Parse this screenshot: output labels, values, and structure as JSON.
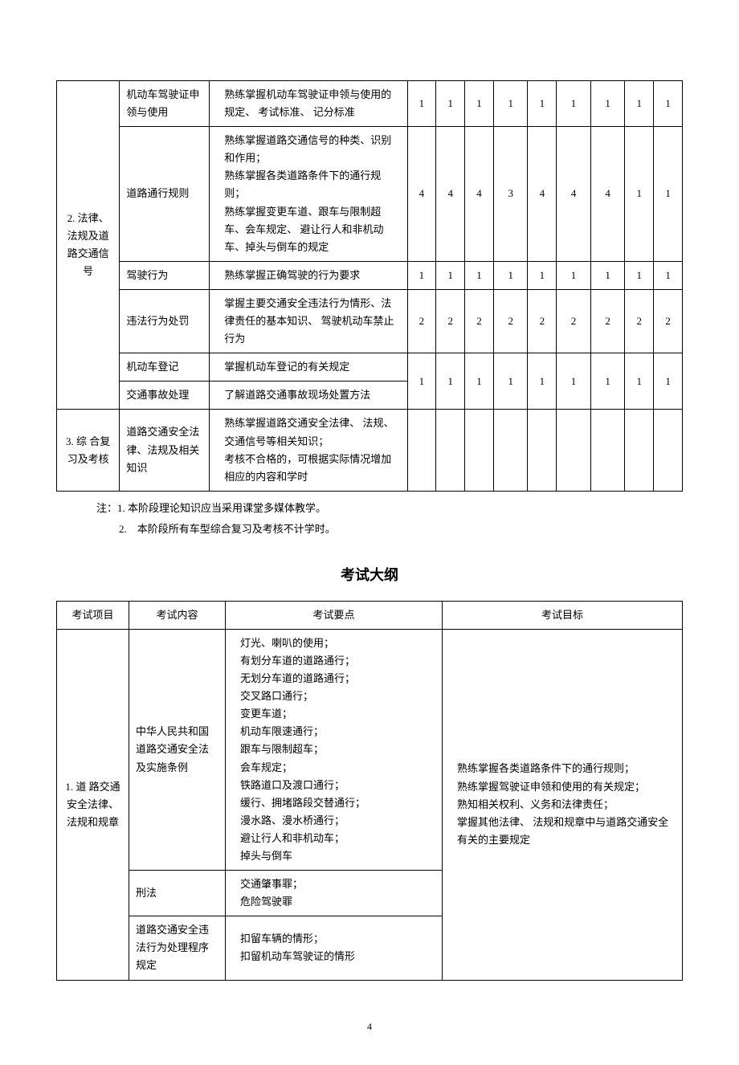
{
  "table1": {
    "sectionHeader": "2. 法律、法规及道路交通信号",
    "rows": [
      {
        "topic": "机动车驾驶证申领与使用",
        "desc": "熟练掌握机动车驾驶证申领与使用的规定、 考试标准、 记分标准",
        "vals": [
          "1",
          "1",
          "1",
          "1",
          "1",
          "1",
          "1",
          "1",
          "1"
        ]
      },
      {
        "topic": "道路通行规则",
        "desc": "熟练掌握道路交通信号的种类、识别和作用；<br>熟练掌握各类道路条件下的通行规则；<br>熟练掌握变更车道、跟车与限制超车、会车规定、 避让行人和非机动车、掉头与倒车的规定",
        "vals": [
          "4",
          "4",
          "4",
          "3",
          "4",
          "4",
          "4",
          "1",
          "1"
        ]
      },
      {
        "topic": "驾驶行为",
        "desc": "熟练掌握正确驾驶的行为要求",
        "vals": [
          "1",
          "1",
          "1",
          "1",
          "1",
          "1",
          "1",
          "1",
          "1"
        ]
      },
      {
        "topic": "违法行为处罚",
        "desc": "掌握主要交通安全违法行为情形、法律责任的基本知识、 驾驶机动车禁止行为",
        "vals": [
          "2",
          "2",
          "2",
          "2",
          "2",
          "2",
          "2",
          "2",
          "2"
        ]
      },
      {
        "topic": "机动车登记",
        "desc": "掌握机动车登记的有关规定",
        "vals": [
          "",
          "",
          "",
          "",
          "",
          "",
          "",
          "",
          ""
        ],
        "shareVals": true
      },
      {
        "topic": "交通事故处理",
        "desc": "了解道路交通事故现场处置方法",
        "vals": [
          "1",
          "1",
          "1",
          "1",
          "1",
          "1",
          "1",
          "1",
          "1"
        ]
      }
    ],
    "section3": {
      "header": "3. 综 合复习及考核",
      "topic": "道路交通安全法律、法规及相关知识",
      "desc": "熟练掌握道路交通安全法律、 法规、交通信号等相关知识；<br>考核不合格的，可根据实际情况增加相应的内容和学时",
      "vals": [
        "",
        "",
        "",
        "",
        "",
        "",
        "",
        "",
        ""
      ]
    }
  },
  "notes": {
    "n1": "注：1. 本阶段理论知识应当采用课堂多媒体教学。",
    "n2": "2.　本阶段所有车型综合复习及考核不计学时。"
  },
  "sectionTitle": "考试大纲",
  "table2": {
    "headers": [
      "考试项目",
      "考试内容",
      "考试要点",
      "考试目标"
    ],
    "section": "1. 道 路交通安全法律、法规和规章",
    "rows": [
      {
        "content": "中华人民共和国道路交通安全法及实施条例",
        "points": "灯光、喇叭的使用；<br>有划分车道的道路通行；<br>无划分车道的道路通行；<br>交叉路口通行；<br>变更车道；<br>机动车限速通行；<br>跟车与限制超车；<br>会车规定；<br>铁路道口及渡口通行；<br>缓行、拥堵路段交替通行；<br>漫水路、漫水桥通行；<br>避让行人和非机动车；<br>掉头与倒车"
      },
      {
        "content": "刑法",
        "points": "交通肇事罪；<br>危险驾驶罪"
      },
      {
        "content": "道路交通安全违法行为处理程序规定",
        "points": "扣留车辆的情形；<br>扣留机动车驾驶证的情形"
      }
    ],
    "goal": "熟练掌握各类道路条件下的通行规则；<br>熟练掌握驾驶证申领和使用的有关规定；<br>熟知相关权利、义务和法律责任；<br>掌握其他法律、 法规和规章中与道路交通安全有关的主要规定"
  },
  "pageNum": "4"
}
